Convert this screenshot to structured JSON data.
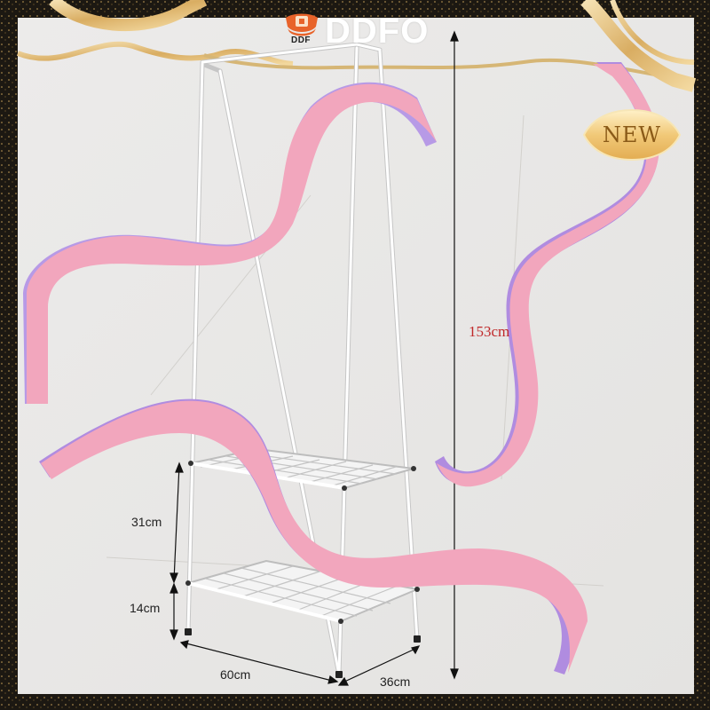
{
  "brand": {
    "logo_word": "DDFO",
    "logo_small": "DDF",
    "accent": "#e8632a"
  },
  "product": {
    "name": "clothes-rack-with-two-shoe-shelves",
    "frame_color": "#ffffff"
  },
  "dimensions": {
    "height": "153cm",
    "width": "60cm",
    "depth": "36cm",
    "shelf_gap": "31cm",
    "bottom_clearance": "14cm"
  },
  "badge": {
    "label": "NEW",
    "color": "#f3d28c"
  },
  "decor": {
    "ribbon_color": "#f2a6bd",
    "ribbon_shadow": "#b08ce0",
    "gold_ribbon": "#e9c98d",
    "border_color": "#1e1a14"
  }
}
